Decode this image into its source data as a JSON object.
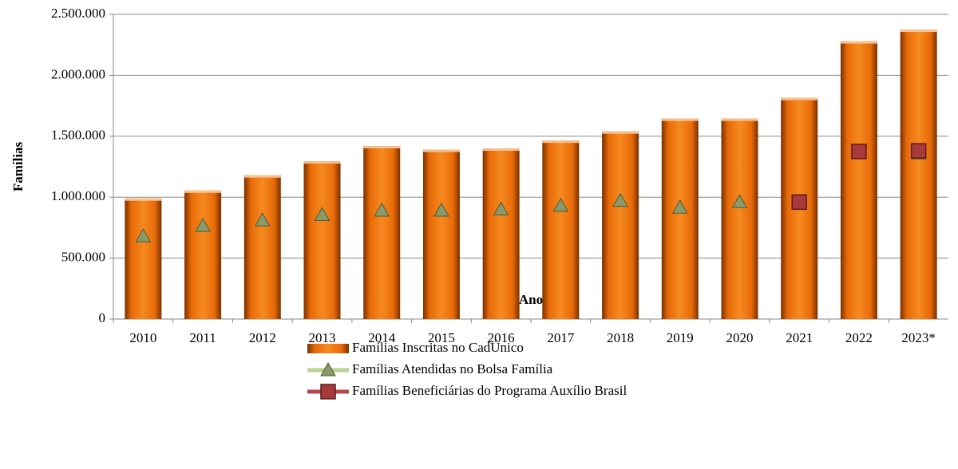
{
  "chart_data": {
    "type": "bar_line",
    "xlabel": "Ano",
    "ylabel": "Famílias",
    "categories": [
      "2010",
      "2011",
      "2012",
      "2013",
      "2014",
      "2015",
      "2016",
      "2017",
      "2018",
      "2019",
      "2020",
      "2021",
      "2022",
      "2023*"
    ],
    "series": [
      {
        "name": "Famílias Inscritas no CadÚnico",
        "type": "bar",
        "color": "#f07810",
        "values": [
          990000,
          1055000,
          1180000,
          1295000,
          1420000,
          1390000,
          1400000,
          1465000,
          1540000,
          1645000,
          1645000,
          1815000,
          2280000,
          2375000
        ]
      },
      {
        "name": "Famílias Atendidas no Bolsa Família",
        "type": "line",
        "marker": "triangle",
        "color": "#b9d38e",
        "values": [
          680000,
          765000,
          810000,
          855000,
          890000,
          890000,
          900000,
          930000,
          970000,
          915000,
          960000,
          960000,
          1370000,
          1360000
        ]
      },
      {
        "name": "Famílias Beneficiárias do Programa Auxílio Brasil",
        "type": "line",
        "marker": "square",
        "color": "#b8484b",
        "values": [
          null,
          null,
          null,
          null,
          null,
          null,
          null,
          null,
          null,
          null,
          null,
          960000,
          1375000,
          1380000
        ]
      }
    ],
    "ylim": [
      0,
      2500000
    ],
    "yticks": [
      0,
      {
        "value": 500000,
        "label": "500.000"
      },
      {
        "value": 1000000,
        "label": "1.000.000"
      },
      {
        "value": 1500000,
        "label": "1.500.000"
      },
      {
        "value": 2000000,
        "label": "2.000.000"
      },
      {
        "value": 2500000,
        "label": "2.500.000"
      }
    ],
    "grid": true,
    "legend": "bottom"
  }
}
